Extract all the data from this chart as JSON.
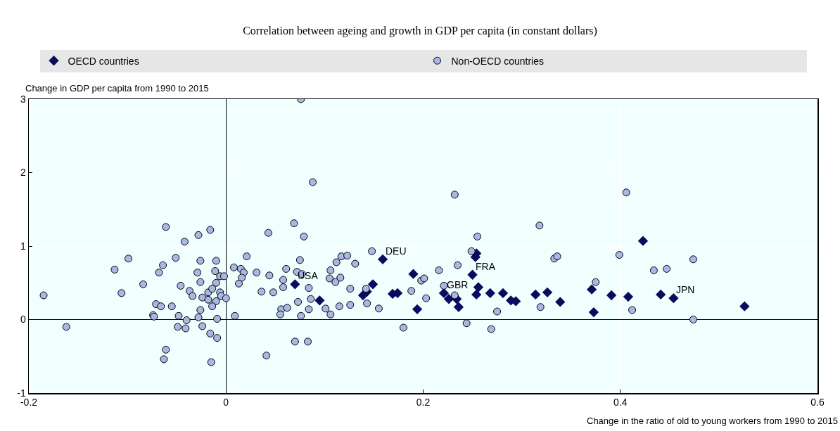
{
  "chart_data": {
    "type": "scatter",
    "title": "Correlation between ageing and growth in GDP per capita (in constant dollars)",
    "xlabel": "Change in the ratio of old to young workers from 1990 to 2015",
    "ylabel": "Change in GDP per capita from 1990 to 2015",
    "xlim": [
      -0.2,
      0.6
    ],
    "xticks": [
      -0.2,
      0,
      0.2,
      0.4,
      0.6
    ],
    "ylim": [
      -1,
      3
    ],
    "yticks": [
      -1,
      0,
      1,
      2,
      3
    ],
    "grid": true,
    "legend": "top",
    "series": [
      {
        "name": "OECD countries",
        "color": "#0a0a5e",
        "marker": "diamond",
        "x": [
          0.07,
          0.095,
          0.159,
          0.149,
          0.139,
          0.143,
          0.169,
          0.174,
          0.19,
          0.194,
          0.221,
          0.226,
          0.234,
          0.236,
          0.253,
          0.254,
          0.25,
          0.256,
          0.254,
          0.268,
          0.281,
          0.289,
          0.294,
          0.314,
          0.326,
          0.339,
          0.371,
          0.373,
          0.391,
          0.408,
          0.423,
          0.441,
          0.454,
          0.526
        ],
        "values": [
          0.48,
          0.26,
          0.82,
          0.48,
          0.33,
          0.38,
          0.35,
          0.36,
          0.62,
          0.14,
          0.36,
          0.28,
          0.28,
          0.17,
          0.85,
          0.9,
          0.61,
          0.44,
          0.34,
          0.36,
          0.36,
          0.26,
          0.25,
          0.34,
          0.37,
          0.24,
          0.41,
          0.1,
          0.33,
          0.31,
          1.07,
          0.34,
          0.29,
          0.18
        ]
      },
      {
        "name": "Non-OECD countries",
        "color": "#a7b8e4",
        "marker": "circle",
        "x": [
          -0.185,
          -0.162,
          -0.113,
          -0.099,
          -0.106,
          -0.084,
          -0.061,
          -0.042,
          -0.028,
          -0.016,
          -0.051,
          -0.064,
          -0.068,
          -0.026,
          -0.01,
          -0.029,
          -0.026,
          -0.046,
          -0.037,
          -0.034,
          -0.024,
          -0.018,
          -0.014,
          -0.01,
          -0.011,
          -0.006,
          -0.002,
          -0.006,
          -0.005,
          0.0,
          -0.018,
          -0.01,
          -0.014,
          -0.026,
          -0.028,
          -0.009,
          0.008,
          0.009,
          -0.071,
          -0.066,
          -0.055,
          -0.074,
          -0.073,
          -0.048,
          -0.04,
          -0.049,
          -0.041,
          -0.024,
          -0.016,
          -0.009,
          -0.061,
          -0.063,
          -0.015,
          0.076,
          0.088,
          0.069,
          0.043,
          0.079,
          0.021,
          0.075,
          0.015,
          0.018,
          0.016,
          0.013,
          0.031,
          0.044,
          0.061,
          0.072,
          0.077,
          0.058,
          0.058,
          0.036,
          0.048,
          0.084,
          0.073,
          0.086,
          0.056,
          0.055,
          0.062,
          0.076,
          0.084,
          0.101,
          0.106,
          0.106,
          0.112,
          0.117,
          0.123,
          0.131,
          0.105,
          0.111,
          0.116,
          0.126,
          0.115,
          0.126,
          0.143,
          0.155,
          0.148,
          0.142,
          0.188,
          0.198,
          0.201,
          0.203,
          0.18,
          0.07,
          0.083,
          0.041,
          0.232,
          0.318,
          0.406,
          0.255,
          0.249,
          0.333,
          0.336,
          0.399,
          0.235,
          0.216,
          0.221,
          0.232,
          0.375,
          0.275,
          0.319,
          0.244,
          0.269,
          0.412,
          0.434,
          0.447,
          0.474,
          0.474
        ],
        "values": [
          0.33,
          -0.1,
          0.68,
          0.83,
          0.36,
          0.48,
          1.26,
          1.06,
          1.15,
          1.22,
          0.84,
          0.74,
          0.64,
          0.8,
          0.8,
          0.64,
          0.51,
          0.46,
          0.39,
          0.32,
          0.3,
          0.37,
          0.42,
          0.5,
          0.66,
          0.59,
          0.59,
          0.37,
          0.32,
          0.29,
          0.27,
          0.25,
          0.18,
          0.13,
          0.03,
          0.01,
          0.71,
          0.05,
          0.21,
          0.18,
          0.18,
          0.06,
          0.04,
          0.05,
          -0.01,
          -0.1,
          -0.12,
          -0.09,
          -0.19,
          -0.25,
          -0.41,
          -0.54,
          -0.58,
          3.0,
          1.87,
          1.31,
          1.18,
          1.13,
          0.86,
          0.81,
          0.69,
          0.64,
          0.57,
          0.49,
          0.64,
          0.6,
          0.69,
          0.65,
          0.62,
          0.54,
          0.44,
          0.38,
          0.37,
          0.43,
          0.24,
          0.28,
          0.14,
          0.07,
          0.16,
          0.05,
          0.14,
          0.15,
          0.07,
          0.67,
          0.78,
          0.86,
          0.87,
          0.76,
          0.56,
          0.51,
          0.57,
          0.42,
          0.18,
          0.2,
          0.22,
          0.15,
          0.93,
          0.42,
          0.39,
          0.53,
          0.56,
          0.29,
          -0.11,
          -0.3,
          -0.3,
          -0.49,
          1.7,
          1.28,
          1.73,
          1.13,
          0.93,
          0.83,
          0.86,
          0.88,
          0.74,
          0.67,
          0.46,
          0.33,
          0.51,
          0.11,
          0.17,
          -0.05,
          -0.13,
          0.13,
          0.67,
          0.69,
          0.82,
          0.0
        ]
      }
    ],
    "annotations": [
      {
        "text": "USA",
        "x": 0.07,
        "y": 0.48
      },
      {
        "text": "DEU",
        "x": 0.159,
        "y": 0.82
      },
      {
        "text": "GBR",
        "x": 0.221,
        "y": 0.36
      },
      {
        "text": "FRA",
        "x": 0.25,
        "y": 0.61
      },
      {
        "text": "JPN",
        "x": 0.454,
        "y": 0.29
      }
    ]
  }
}
